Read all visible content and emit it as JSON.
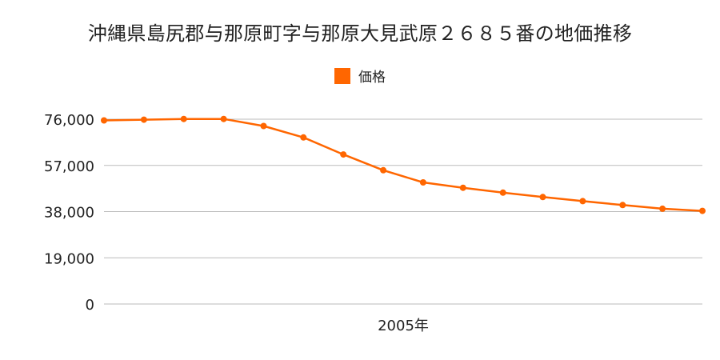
{
  "colors": {
    "series": "#ff6600",
    "grid": "#bbbbbb",
    "text": "#222222"
  },
  "chart_data": {
    "type": "line",
    "title": "沖縄県島尻郡与那原町字与那原大見武原２６８５番の地価推移",
    "legend_position": "top-center",
    "grid": true,
    "x_label": "2005年",
    "y_ticks": [
      "76,000",
      "57,000",
      "38,000",
      "19,000",
      "0"
    ],
    "ylim": [
      0,
      76000
    ],
    "series": [
      {
        "name": "価格",
        "values": [
          75500,
          75800,
          76100,
          76100,
          73200,
          68500,
          61500,
          55000,
          50000,
          47800,
          45800,
          44000,
          42300,
          40700,
          39200,
          38300
        ]
      }
    ]
  }
}
